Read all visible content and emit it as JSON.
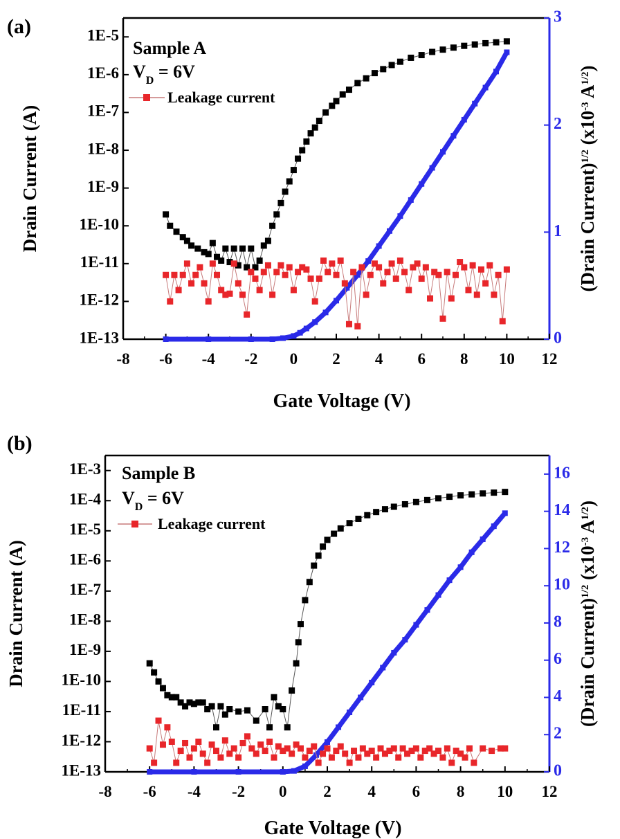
{
  "chart_data": [
    {
      "panel_label": "(a)",
      "type": "scatter",
      "xlabel": "Gate Voltage (V)",
      "ylabel_left": "Drain Current (A)",
      "ylabel_right": "(Drain Current)^1/2 (x10^-3 A^1/2)",
      "ylabel_right_parts": {
        "a": "(Drain Current)",
        "b": "1/2",
        "c": "(x10",
        "d": "-3",
        "e": "A",
        "f": "1/2",
        "g": ")"
      },
      "annotations": {
        "sample": "Sample A",
        "vd_v": "V",
        "vd_sub": "D",
        "vd_rest": "= 6V"
      },
      "legend": [
        "Leakage current"
      ],
      "xlim": [
        -8,
        12
      ],
      "xticks": [
        -8,
        -6,
        -4,
        -2,
        0,
        2,
        4,
        6,
        8,
        10,
        12
      ],
      "ylim_left_log": [
        1e-13,
        3.16e-05
      ],
      "yticks_left": [
        "1E-13",
        "1E-12",
        "1E-11",
        "1E-10",
        "1E-9",
        "1E-8",
        "1E-7",
        "1E-6",
        "1E-5"
      ],
      "ylim_right": [
        0,
        3
      ],
      "yticks_right": [
        0,
        1,
        2,
        3
      ],
      "series": [
        {
          "name": "",
          "axis": "left",
          "color": "#000000",
          "marker": "square",
          "x": [
            -6.0,
            -5.8,
            -5.5,
            -5.2,
            -5.0,
            -4.8,
            -4.5,
            -4.2,
            -4.0,
            -3.8,
            -3.6,
            -3.4,
            -3.2,
            -3.0,
            -2.8,
            -2.6,
            -2.4,
            -2.2,
            -2.0,
            -1.8,
            -1.6,
            -1.4,
            -1.2,
            -1.0,
            -0.8,
            -0.6,
            -0.4,
            -0.2,
            0.0,
            0.2,
            0.4,
            0.6,
            0.8,
            1.0,
            1.2,
            1.5,
            1.8,
            2.0,
            2.3,
            2.6,
            3.0,
            3.4,
            3.8,
            4.2,
            4.6,
            5.0,
            5.5,
            6.0,
            6.5,
            7.0,
            7.5,
            8.0,
            8.5,
            9.0,
            9.5,
            10.0
          ],
          "y": [
            2e-10,
            1e-10,
            7e-11,
            5e-11,
            4e-11,
            3e-11,
            2.5e-11,
            2e-11,
            1.8e-11,
            3.5e-11,
            1.5e-11,
            1.2e-11,
            2.5e-11,
            1.1e-11,
            2.5e-11,
            9e-12,
            2.5e-11,
            8e-12,
            2.5e-11,
            8e-12,
            1.2e-11,
            3e-11,
            4e-11,
            1e-10,
            2e-10,
            4e-10,
            8e-10,
            1.5e-09,
            3e-09,
            6e-09,
            1e-08,
            1.7e-08,
            2.8e-08,
            4e-08,
            6e-08,
            1e-07,
            1.5e-07,
            2e-07,
            3e-07,
            4e-07,
            6e-07,
            8e-07,
            1.1e-06,
            1.4e-06,
            1.8e-06,
            2.2e-06,
            2.8e-06,
            3.3e-06,
            4e-06,
            4.6e-06,
            5.2e-06,
            5.8e-06,
            6.3e-06,
            6.8e-06,
            7.2e-06,
            7.6e-06
          ]
        },
        {
          "name": "",
          "axis": "right",
          "color": "#2a2ae8",
          "marker": "square",
          "x": [
            -6.0,
            -4.0,
            -2.0,
            -1.0,
            -0.5,
            0.0,
            0.3,
            0.6,
            1.0,
            1.5,
            2.0,
            2.5,
            3.0,
            3.5,
            4.0,
            4.5,
            5.0,
            5.5,
            6.0,
            6.5,
            7.0,
            7.5,
            8.0,
            8.5,
            9.0,
            9.5,
            10.0
          ],
          "y": [
            0.0,
            0.0,
            0.0,
            0.0,
            0.01,
            0.03,
            0.06,
            0.1,
            0.16,
            0.25,
            0.36,
            0.48,
            0.6,
            0.73,
            0.87,
            1.01,
            1.15,
            1.3,
            1.45,
            1.6,
            1.75,
            1.9,
            2.05,
            2.2,
            2.35,
            2.5,
            2.68
          ]
        },
        {
          "name": "Leakage current",
          "axis": "left",
          "color": "#e8262a",
          "marker": "square",
          "x": [
            -6.0,
            -5.8,
            -5.6,
            -5.4,
            -5.2,
            -5.0,
            -4.8,
            -4.6,
            -4.4,
            -4.2,
            -4.0,
            -3.8,
            -3.6,
            -3.4,
            -3.2,
            -3.0,
            -2.8,
            -2.6,
            -2.4,
            -2.2,
            -2.0,
            -1.8,
            -1.6,
            -1.4,
            -1.2,
            -1.0,
            -0.8,
            -0.6,
            -0.4,
            -0.2,
            0.0,
            0.2,
            0.4,
            0.6,
            0.8,
            1.0,
            1.2,
            1.4,
            1.6,
            1.8,
            2.0,
            2.2,
            2.4,
            2.6,
            2.8,
            3.0,
            3.2,
            3.4,
            3.6,
            3.8,
            4.0,
            4.2,
            4.4,
            4.6,
            4.8,
            5.0,
            5.2,
            5.4,
            5.6,
            5.8,
            6.0,
            6.2,
            6.4,
            6.6,
            6.8,
            7.0,
            7.2,
            7.4,
            7.6,
            7.8,
            8.0,
            8.2,
            8.4,
            8.6,
            8.8,
            9.0,
            9.2,
            9.4,
            9.6,
            9.8,
            10.0
          ],
          "y": [
            5e-12,
            1e-12,
            5e-12,
            2e-12,
            5e-12,
            1e-11,
            3e-12,
            5e-12,
            8e-12,
            3e-12,
            1e-12,
            1e-11,
            5e-12,
            2e-12,
            1.5e-12,
            1.6e-12,
            1e-11,
            3e-12,
            1.5e-12,
            4.5e-13,
            6e-12,
            4e-12,
            2e-12,
            6e-12,
            9e-12,
            1.5e-12,
            6e-12,
            9e-12,
            5e-12,
            8e-12,
            2e-12,
            6e-12,
            8e-12,
            7e-12,
            4e-12,
            1e-12,
            4e-12,
            1.2e-11,
            6e-12,
            1e-11,
            5e-12,
            1.2e-11,
            3e-12,
            2.5e-13,
            6e-12,
            2.2e-13,
            8e-12,
            1.5e-12,
            5e-12,
            1e-11,
            8e-12,
            3e-12,
            6e-12,
            1e-11,
            4e-12,
            1.2e-11,
            6e-12,
            2e-12,
            8e-12,
            1e-11,
            4e-12,
            8e-12,
            1.2e-12,
            6e-12,
            5e-12,
            3.5e-13,
            6e-12,
            1.2e-12,
            5e-12,
            1.1e-11,
            8e-12,
            2e-12,
            9e-12,
            1.5e-12,
            7e-12,
            3e-12,
            9e-12,
            1.5e-12,
            5e-12,
            3e-13,
            7e-12
          ]
        }
      ]
    },
    {
      "panel_label": "(b)",
      "type": "scatter",
      "xlabel": "Gate Voltage (V)",
      "ylabel_left": "Drain Current (A)",
      "ylabel_right": "(Drain Current)^1/2 (x10^-3 A^1/2)",
      "ylabel_right_parts": {
        "a": "(Drain Current)",
        "b": "1/2",
        "c": "(x10",
        "d": "-3",
        "e": "A",
        "f": "1/2",
        "g": ")"
      },
      "annotations": {
        "sample": "Sample B",
        "vd_v": "V",
        "vd_sub": "D",
        "vd_rest": "= 6V"
      },
      "legend": [
        "Leakage current"
      ],
      "xlim": [
        -8,
        12
      ],
      "xticks": [
        -8,
        -6,
        -4,
        -2,
        0,
        2,
        4,
        6,
        8,
        10,
        12
      ],
      "ylim_left_log": [
        1e-13,
        0.00316
      ],
      "yticks_left": [
        "1E-13",
        "1E-12",
        "1E-11",
        "1E-10",
        "1E-9",
        "1E-8",
        "1E-7",
        "1E-6",
        "1E-5",
        "1E-4",
        "1E-3"
      ],
      "ylim_right": [
        0,
        17
      ],
      "yticks_right": [
        0,
        2,
        4,
        6,
        8,
        10,
        12,
        14,
        16
      ],
      "series": [
        {
          "name": "",
          "axis": "left",
          "color": "#000000",
          "marker": "square",
          "x": [
            -6.0,
            -5.8,
            -5.6,
            -5.4,
            -5.2,
            -5.0,
            -4.8,
            -4.6,
            -4.4,
            -4.2,
            -4.0,
            -3.8,
            -3.6,
            -3.4,
            -3.2,
            -3.0,
            -2.8,
            -2.6,
            -2.4,
            -2.0,
            -1.6,
            -1.2,
            -0.8,
            -0.6,
            -0.4,
            -0.2,
            0.0,
            0.2,
            0.4,
            0.6,
            0.7,
            0.8,
            1.0,
            1.2,
            1.4,
            1.6,
            1.8,
            2.0,
            2.3,
            2.6,
            3.0,
            3.4,
            3.8,
            4.2,
            4.6,
            5.0,
            5.5,
            6.0,
            6.5,
            7.0,
            7.5,
            8.0,
            8.5,
            9.0,
            9.5,
            10.0
          ],
          "y": [
            4e-10,
            2e-10,
            1e-10,
            6e-11,
            3.5e-11,
            3e-11,
            3e-11,
            2e-11,
            1.5e-11,
            2e-11,
            1.8e-11,
            2e-11,
            2e-11,
            1.2e-11,
            1.5e-11,
            3e-12,
            1.5e-11,
            8e-12,
            1.2e-11,
            1e-11,
            1.1e-11,
            5e-12,
            1.2e-11,
            3e-12,
            3e-11,
            1.5e-11,
            1.2e-11,
            3e-12,
            5e-11,
            4e-10,
            2e-09,
            8e-09,
            5e-08,
            2e-07,
            7e-07,
            1.5e-06,
            3e-06,
            5e-06,
            8e-06,
            1.2e-05,
            1.8e-05,
            2.5e-05,
            3.3e-05,
            4.2e-05,
            5.2e-05,
            6.3e-05,
            7.6e-05,
            9e-05,
            0.000105,
            0.00012,
            0.000135,
            0.00015,
            0.000162,
            0.000174,
            0.000185,
            0.000195
          ]
        },
        {
          "name": "",
          "axis": "right",
          "color": "#2a2ae8",
          "marker": "square",
          "x": [
            -6.0,
            -4.0,
            -2.0,
            0.0,
            0.5,
            1.0,
            1.5,
            2.0,
            2.5,
            3.0,
            3.5,
            4.0,
            4.5,
            5.0,
            5.5,
            6.0,
            6.5,
            7.0,
            7.5,
            8.0,
            8.5,
            9.0,
            9.5,
            10.0
          ],
          "y": [
            0.0,
            0.0,
            0.0,
            0.0,
            0.05,
            0.3,
            0.9,
            1.6,
            2.4,
            3.2,
            4.0,
            4.8,
            5.6,
            6.4,
            7.1,
            7.9,
            8.7,
            9.5,
            10.3,
            11.0,
            11.8,
            12.5,
            13.2,
            13.9
          ]
        },
        {
          "name": "Leakage current",
          "axis": "left",
          "color": "#e8262a",
          "marker": "square",
          "x": [
            -6.0,
            -5.8,
            -5.6,
            -5.4,
            -5.2,
            -5.0,
            -4.8,
            -4.6,
            -4.4,
            -4.2,
            -4.0,
            -3.8,
            -3.6,
            -3.4,
            -3.2,
            -3.0,
            -2.8,
            -2.6,
            -2.4,
            -2.2,
            -2.0,
            -1.8,
            -1.6,
            -1.4,
            -1.2,
            -1.0,
            -0.8,
            -0.6,
            -0.4,
            -0.2,
            0.0,
            0.2,
            0.4,
            0.6,
            0.8,
            1.0,
            1.2,
            1.4,
            1.6,
            1.8,
            2.0,
            2.2,
            2.4,
            2.6,
            2.8,
            3.0,
            3.2,
            3.4,
            3.6,
            3.8,
            4.0,
            4.2,
            4.4,
            4.6,
            4.8,
            5.0,
            5.2,
            5.4,
            5.6,
            5.8,
            6.0,
            6.2,
            6.4,
            6.6,
            6.8,
            7.0,
            7.2,
            7.4,
            7.6,
            7.8,
            8.0,
            8.2,
            8.4,
            8.6,
            9.0,
            9.4,
            9.8,
            10.0
          ],
          "y": [
            6e-13,
            2e-13,
            5e-12,
            8e-13,
            3e-12,
            1e-12,
            2e-13,
            5e-13,
            9e-13,
            3e-13,
            6e-13,
            1e-12,
            4e-13,
            2e-13,
            8e-13,
            5e-13,
            3e-13,
            1.1e-12,
            4e-13,
            6e-13,
            3e-13,
            9e-13,
            1.5e-12,
            6e-13,
            4e-13,
            8e-13,
            5e-13,
            1e-12,
            3e-13,
            7e-13,
            5e-13,
            6e-13,
            4e-13,
            8e-13,
            6e-13,
            3e-13,
            5e-13,
            7e-13,
            2e-13,
            4e-13,
            6e-13,
            3e-13,
            5e-13,
            7e-13,
            4e-13,
            2e-13,
            5e-13,
            3e-13,
            6e-13,
            4e-13,
            5e-13,
            3e-13,
            6e-13,
            4e-13,
            5e-13,
            6e-13,
            3e-13,
            6e-13,
            4e-13,
            5e-13,
            6e-13,
            3e-13,
            5e-13,
            6e-13,
            4e-13,
            5e-13,
            3e-13,
            6e-13,
            2e-13,
            5e-13,
            4e-13,
            3e-13,
            6e-13,
            2e-13,
            6e-13,
            5e-13,
            6e-13,
            6e-13
          ]
        }
      ]
    }
  ]
}
